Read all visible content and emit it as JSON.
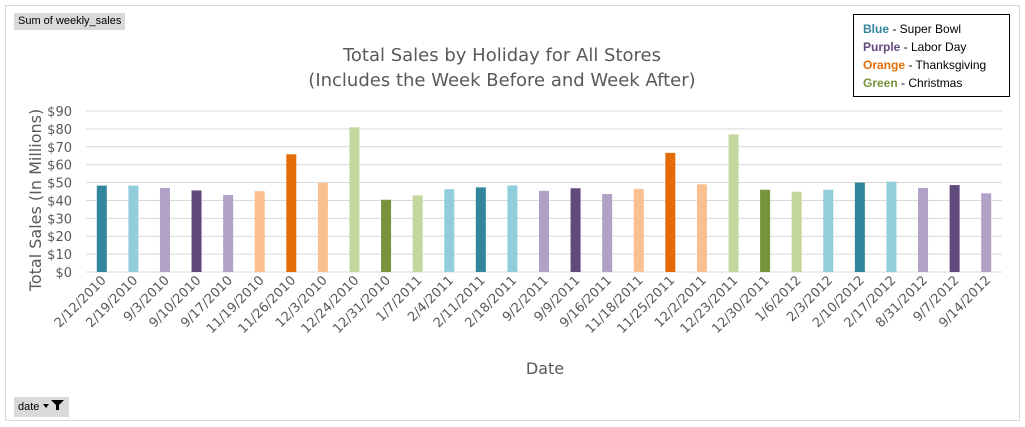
{
  "pivot": {
    "value_field": "Sum of weekly_sales",
    "row_field": "date"
  },
  "legend": [
    {
      "key": "Blue",
      "rest": " - Super Bowl",
      "color": "#31859c"
    },
    {
      "key": "Purple",
      "rest": " - Labor Day",
      "color": "#604a7b"
    },
    {
      "key": "Orange",
      "rest": " - Thanksgiving",
      "color": "#e36c09"
    },
    {
      "key": "Green",
      "rest": " - Christmas",
      "color": "#77933c"
    }
  ],
  "chart_data": {
    "type": "bar",
    "title": "Total Sales by Holiday for All Stores",
    "subtitle": "(Includes the Week Before and Week After)",
    "xlabel": "Date",
    "ylabel": "Total Sales (In Millions)",
    "ylim": [
      0,
      90
    ],
    "ytick_step": 10,
    "ytick_prefix": "$",
    "grid": true,
    "categories": [
      "2/12/2010",
      "2/19/2010",
      "9/3/2010",
      "9/10/2010",
      "9/17/2010",
      "11/19/2010",
      "11/26/2010",
      "12/3/2010",
      "12/24/2010",
      "12/31/2010",
      "1/7/2011",
      "2/4/2011",
      "2/11/2011",
      "2/18/2011",
      "9/2/2011",
      "9/9/2011",
      "9/16/2011",
      "11/18/2011",
      "11/25/2011",
      "12/2/2011",
      "12/23/2011",
      "12/30/2011",
      "1/6/2012",
      "2/3/2012",
      "2/10/2012",
      "2/17/2012",
      "8/31/2012",
      "9/7/2012",
      "9/14/2012"
    ],
    "values": [
      48.3,
      48.3,
      47.0,
      45.6,
      43.0,
      45.2,
      65.8,
      49.8,
      80.9,
      40.4,
      42.8,
      46.3,
      47.3,
      48.4,
      45.4,
      46.8,
      43.6,
      46.5,
      66.6,
      49.0,
      76.9,
      46.0,
      44.9,
      46.0,
      50.0,
      50.5,
      47.0,
      48.6,
      44.0
    ],
    "colors": [
      "#31859c",
      "#92cddc",
      "#b2a1c7",
      "#604a7b",
      "#b2a1c7",
      "#fac090",
      "#e36c09",
      "#fac090",
      "#c3d69b",
      "#77933c",
      "#c3d69b",
      "#92cddc",
      "#31859c",
      "#92cddc",
      "#b2a1c7",
      "#604a7b",
      "#b2a1c7",
      "#fac090",
      "#e36c09",
      "#fac090",
      "#c3d69b",
      "#77933c",
      "#c3d69b",
      "#92cddc",
      "#31859c",
      "#92cddc",
      "#b2a1c7",
      "#604a7b",
      "#b2a1c7"
    ]
  }
}
